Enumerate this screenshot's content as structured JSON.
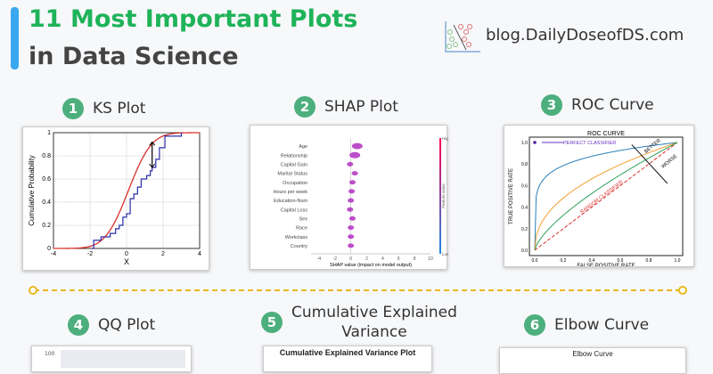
{
  "header": {
    "title_line1": "11 Most Important Plots",
    "title_line2": "in Data Science",
    "site": "blog.DailyDoseofDS.com",
    "accent_color": "#1fb35a",
    "bar_color": "#3aa8f0"
  },
  "sections": [
    {
      "num": "1",
      "label": "KS Plot"
    },
    {
      "num": "2",
      "label": "SHAP Plot"
    },
    {
      "num": "3",
      "label": "ROC Curve"
    },
    {
      "num": "4",
      "label": "QQ Plot"
    },
    {
      "num": "5",
      "label_line1": "Cumulative Explained",
      "label_line2": "Variance"
    },
    {
      "num": "6",
      "label": "Elbow Curve"
    }
  ],
  "partial_cards": {
    "qq_tick": "100",
    "cev_title": "Cumulative Explained Variance Plot",
    "elbow_title": "Elbow Curve"
  },
  "chart_data": [
    {
      "type": "line",
      "name": "ks",
      "xlabel": "X",
      "ylabel": "Cumulative Probability",
      "xlim": [
        -4,
        4
      ],
      "ylim": [
        0,
        1
      ],
      "xticks": [
        -4,
        -2,
        0,
        2,
        4
      ],
      "yticks": [
        0,
        0.2,
        0.4,
        0.6,
        0.8,
        1
      ],
      "grid": true,
      "theoretical_cdf": {
        "color": "#d9302c",
        "mean": 0.1,
        "sd": 1
      },
      "empirical_steps": {
        "color": "#2a2fa8",
        "x": [
          -1.9,
          -1.8,
          -1.4,
          -0.9,
          -0.6,
          -0.4,
          -0.2,
          0.0,
          0.2,
          0.4,
          0.6,
          0.8,
          1.1,
          1.3,
          1.4,
          1.6,
          1.8,
          2.1,
          3.0
        ],
        "y": [
          0.0,
          0.07,
          0.1,
          0.13,
          0.17,
          0.2,
          0.27,
          0.3,
          0.43,
          0.47,
          0.53,
          0.6,
          0.63,
          0.67,
          0.7,
          0.77,
          0.87,
          0.97,
          1.0
        ]
      },
      "ks_arrow": {
        "x": 1.4,
        "y_from": 0.7,
        "y_to": 0.92
      }
    },
    {
      "type": "scatter",
      "name": "shap",
      "xlabel": "SHAP value (impact on model output)",
      "xlim": [
        -5,
        10
      ],
      "xticks": [
        -4,
        -2,
        0,
        2,
        4,
        6,
        8,
        10
      ],
      "colorbar": {
        "high": "High",
        "low": "Low",
        "label": "Feature value",
        "high_color": "#ff0052",
        "low_color": "#1e88e5"
      },
      "features": [
        "Age",
        "Relationship",
        "Capital Gain",
        "Marital Status",
        "Occupation",
        "Hours per week",
        "Education-Num",
        "Capital Loss",
        "Sex",
        "Race",
        "Workclass",
        "Country"
      ],
      "ranges": [
        [
          -4.5,
          2.8
        ],
        [
          -2.5,
          3.1
        ],
        [
          -4.8,
          9.7
        ],
        [
          -1.2,
          1.6
        ],
        [
          -2.1,
          1.4
        ],
        [
          -2.9,
          2.6
        ],
        [
          -2.4,
          3.1
        ],
        [
          -4.3,
          5.8
        ],
        [
          -0.8,
          0.5
        ],
        [
          -1.6,
          2.7
        ],
        [
          -1.2,
          1.6
        ],
        [
          -1.2,
          1.0
        ]
      ],
      "centers": [
        0.8,
        0.5,
        -0.1,
        0.5,
        0.2,
        0.1,
        0.0,
        -0.1,
        0.2,
        0.0,
        0.0,
        0.0
      ]
    },
    {
      "type": "line",
      "name": "roc",
      "title": "ROC CURVE",
      "xlabel": "FALSE POSITIVE RATE",
      "ylabel": "TRUE POSITIVE RATE",
      "xlim": [
        0,
        1
      ],
      "ylim": [
        0,
        1
      ],
      "xticks": [
        "0.0",
        "0.2",
        "0.4",
        "0.6",
        "0.8",
        "1.0"
      ],
      "yticks": [
        "0.0",
        "0.2",
        "0.4",
        "0.6",
        "0.8",
        "1.0"
      ],
      "curves": [
        {
          "color": "#2a7fb8",
          "exponent": 0.15
        },
        {
          "color": "#f0a030",
          "exponent": 0.45
        },
        {
          "color": "#2ca05a",
          "exponent": 0.7
        }
      ],
      "random_color": "#d9302c",
      "annotations": {
        "perfect": "PERFECT CLASSIFIER",
        "random": "RANDOM CLASSIFIER",
        "better": "BETTER",
        "worse": "WORSE"
      }
    }
  ]
}
